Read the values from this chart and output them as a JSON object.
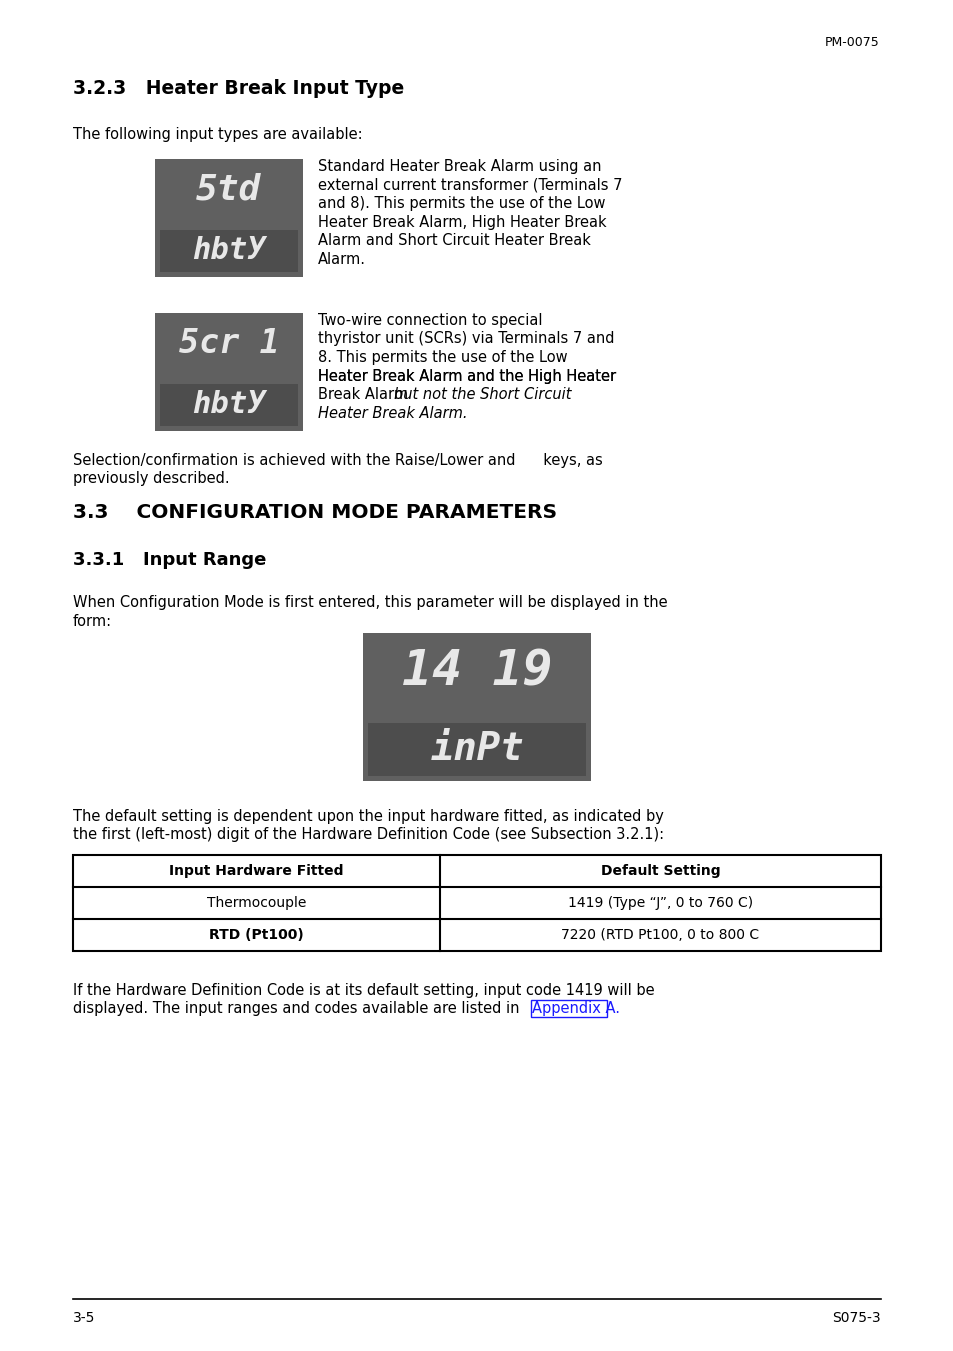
{
  "page_ref_top": "PM-0075",
  "section_title": "3.2.3   Heater Break Input Type",
  "intro_text": "The following input types are available:",
  "display1_top": "5td",
  "display1_bot": "hbtУ",
  "display2_top": "5cr 1",
  "display2_bot": "hbtУ",
  "desc1_lines": [
    "Standard Heater Break Alarm using an",
    "external current transformer (Terminals 7",
    "and 8). This permits the use of the Low",
    "Heater Break Alarm, High Heater Break",
    "Alarm and Short Circuit Heater Break",
    "Alarm."
  ],
  "desc2_lines": [
    "Two-wire connection to special",
    "thyristor unit (SCRs) via Terminals 7 and",
    "8. This permits the use of the Low",
    "Heater Break Alarm and the High Heater",
    "Break Alarm "
  ],
  "desc2_italic": "but not the Short Circuit",
  "desc2_italic2": "Heater Break Alarm.",
  "selection_line1": "Selection/confirmation is achieved with the Raise/Lower and      keys, as",
  "selection_line2": "previously described.",
  "section33_title": "3.3    CONFIGURATION MODE PARAMETERS",
  "section331_title": "3.3.1   Input Range",
  "config_line1": "When Configuration Mode is first entered, this parameter will be displayed in the",
  "config_line2": "form:",
  "display3_top": "14 19",
  "display3_bot": "inPt",
  "default_line1": "The default setting is dependent upon the input hardware fitted, as indicated by",
  "default_line2": "the first (left-most) digit of the Hardware Definition Code (see Subsection 3.2.1):",
  "table_header1": "Input Hardware Fitted",
  "table_header2": "Default Setting",
  "table_row1_col1": "Thermocouple",
  "table_row1_col2": "1419 (Type “J”, 0 to 760 C)",
  "table_row2_col1": "RTD (Pt100)",
  "table_row2_col2": "7220 (RTD Pt100, 0 to 800 C",
  "footer_line1": "If the Hardware Definition Code is at its default setting, input code 1419 will be",
  "footer_line2_pre": "displayed. The input ranges and codes available are listed in ",
  "footer_link": "Appendix A.",
  "page_num_left": "3-5",
  "page_num_right": "S075-3",
  "bg_color": "#ffffff",
  "disp_outer": "#606060",
  "disp_inner": "#4d4d4d",
  "disp_text": "#e8e8e8"
}
